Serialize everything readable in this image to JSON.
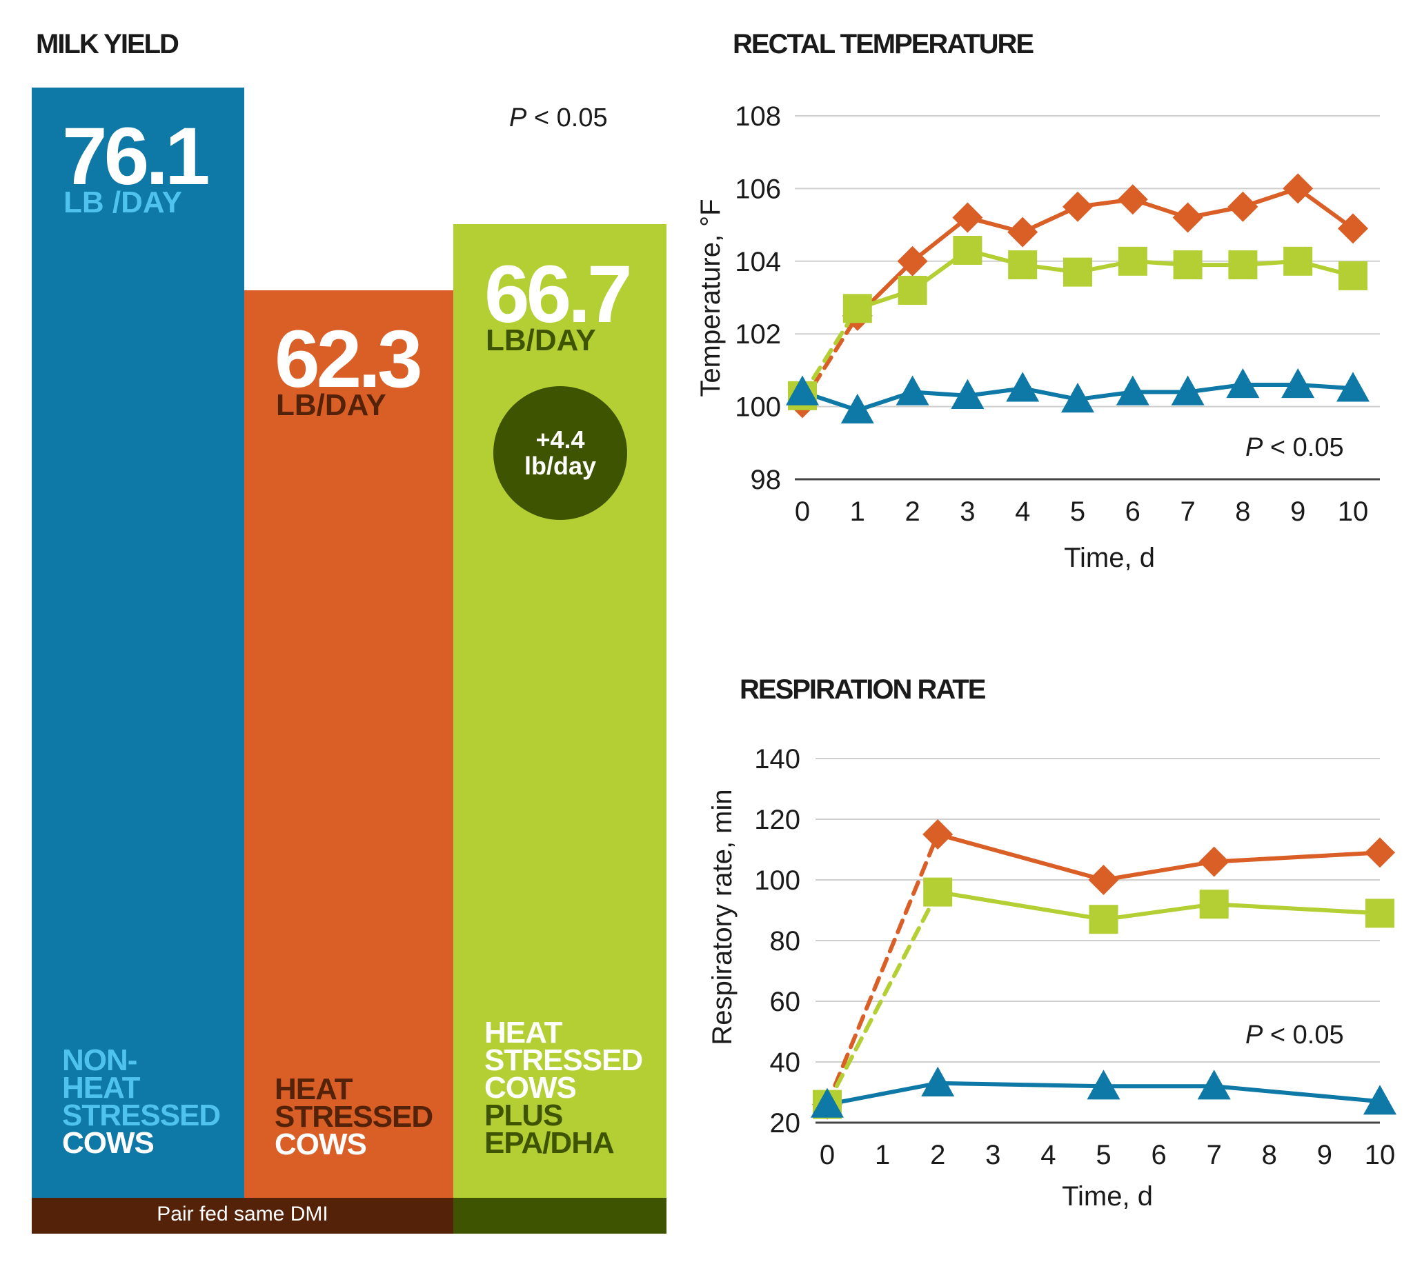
{
  "milk_yield": {
    "title": "MILK YIELD",
    "p_value_italic": "P",
    "p_value_rest": " < 0.05",
    "badge_line1": "+4.4",
    "badge_line2": "lb/day",
    "footer_label": "Pair fed same DMI",
    "colors": {
      "blue": "#0e78a6",
      "orange": "#d95f27",
      "green": "#b3cf33",
      "dark_brown": "#532208",
      "dark_green": "#3f5400",
      "light_blue": "#4fc3ee"
    }
  },
  "rectal": {
    "title": "RECTAL TEMPERATURE",
    "p_value_italic": "P",
    "p_value_rest": " < 0.05"
  },
  "respiration": {
    "title": "RESPIRATION RATE",
    "p_value_italic": "P",
    "p_value_rest": " < 0.05"
  },
  "chart_data": [
    {
      "type": "bar",
      "title": "MILK YIELD",
      "ylim": [
        0,
        90
      ],
      "categories": [
        {
          "lines": [
            "NON-",
            "HEAT",
            "STRESSED",
            "COWS"
          ],
          "value_label": "76.1",
          "unit": "LB /DAY"
        },
        {
          "lines": [
            "HEAT",
            "STRESSED",
            "COWS"
          ],
          "value_label": "62.3",
          "unit": "LB/DAY"
        },
        {
          "lines": [
            "HEAT",
            "STRESSED",
            "COWS",
            "PLUS",
            "EPA/DHA"
          ],
          "value_label": "66.7",
          "unit": "LB/DAY"
        }
      ],
      "values": [
        76.1,
        62.3,
        66.7
      ]
    },
    {
      "type": "line",
      "title": "RECTAL TEMPERATURE",
      "xlabel": "Time, d",
      "ylabel": "Temperature, °F",
      "ylim": [
        98,
        108
      ],
      "yticks": [
        98,
        100,
        102,
        104,
        106,
        108
      ],
      "xticks": [
        0,
        1,
        2,
        3,
        4,
        5,
        6,
        7,
        8,
        9,
        10
      ],
      "series": [
        {
          "name": "Heat stressed cows",
          "marker": "diamond",
          "color": "#d95f27",
          "x": [
            0,
            1,
            2,
            3,
            4,
            5,
            6,
            7,
            8,
            9,
            10
          ],
          "values": [
            100.1,
            102.5,
            104.0,
            105.2,
            104.8,
            105.5,
            105.7,
            105.2,
            105.5,
            106.0,
            104.9
          ]
        },
        {
          "name": "Heat stressed cows plus EPA/DHA",
          "marker": "square",
          "color": "#b3cf33",
          "x": [
            0,
            1,
            2,
            3,
            4,
            5,
            6,
            7,
            8,
            9,
            10
          ],
          "values": [
            100.3,
            102.7,
            103.2,
            104.3,
            103.9,
            103.7,
            104.0,
            103.9,
            103.9,
            104.0,
            103.6
          ]
        },
        {
          "name": "Non-heat stressed cows",
          "marker": "triangle",
          "color": "#0e78a6",
          "x": [
            0,
            1,
            2,
            3,
            4,
            5,
            6,
            7,
            8,
            9,
            10
          ],
          "values": [
            100.4,
            99.9,
            100.4,
            100.3,
            100.5,
            100.2,
            100.4,
            100.4,
            100.6,
            100.6,
            100.5
          ]
        }
      ]
    },
    {
      "type": "line",
      "title": "RESPIRATION RATE",
      "xlabel": "Time, d",
      "ylabel": "Respiratory rate, min",
      "ylim": [
        20,
        140
      ],
      "yticks": [
        20,
        40,
        60,
        80,
        100,
        120,
        140
      ],
      "xticks": [
        0,
        1,
        2,
        3,
        4,
        5,
        6,
        7,
        8,
        9,
        10
      ],
      "series": [
        {
          "name": "Heat stressed cows",
          "marker": "diamond",
          "color": "#d95f27",
          "x": [
            0,
            2,
            5,
            7,
            10
          ],
          "values": [
            26,
            115,
            100,
            106,
            109
          ]
        },
        {
          "name": "Heat stressed cows plus EPA/DHA",
          "marker": "square",
          "color": "#b3cf33",
          "x": [
            0,
            2,
            5,
            7,
            10
          ],
          "values": [
            26,
            96,
            87,
            92,
            89
          ]
        },
        {
          "name": "Non-heat stressed cows",
          "marker": "triangle",
          "color": "#0e78a6",
          "x": [
            0,
            2,
            5,
            7,
            10
          ],
          "values": [
            26,
            33,
            32,
            32,
            27
          ]
        }
      ]
    }
  ]
}
